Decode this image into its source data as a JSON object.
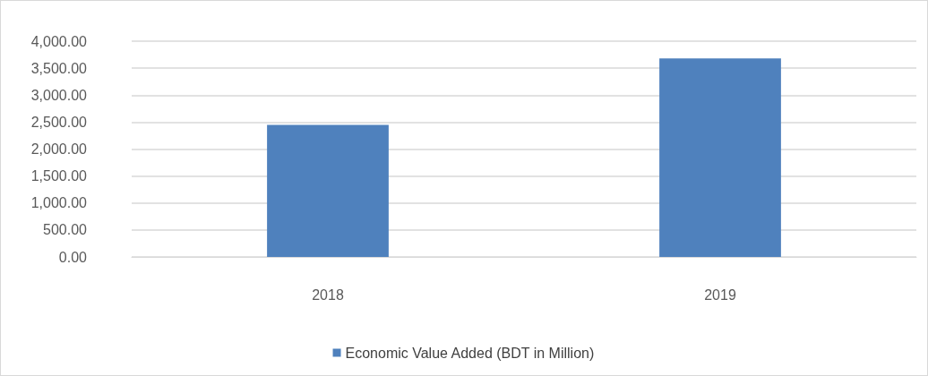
{
  "chart_data": {
    "type": "bar",
    "categories": [
      "2018",
      "2019"
    ],
    "series": [
      {
        "name": "Economic Value Added (BDT in Million)",
        "color": "#4f81bd",
        "values": [
          2450,
          3680
        ]
      }
    ],
    "ylim": [
      0,
      4000
    ],
    "yticks": [
      {
        "value": 0,
        "label": "0.00"
      },
      {
        "value": 500,
        "label": "500.00"
      },
      {
        "value": 1000,
        "label": "1,000.00"
      },
      {
        "value": 1500,
        "label": "1,500.00"
      },
      {
        "value": 2000,
        "label": "2,000.00"
      },
      {
        "value": 2500,
        "label": "2,500.00"
      },
      {
        "value": 3000,
        "label": "3,000.00"
      },
      {
        "value": 3500,
        "label": "3,500.00"
      },
      {
        "value": 4000,
        "label": "4,000.00"
      }
    ],
    "grid": "y",
    "legend": "bottom"
  }
}
